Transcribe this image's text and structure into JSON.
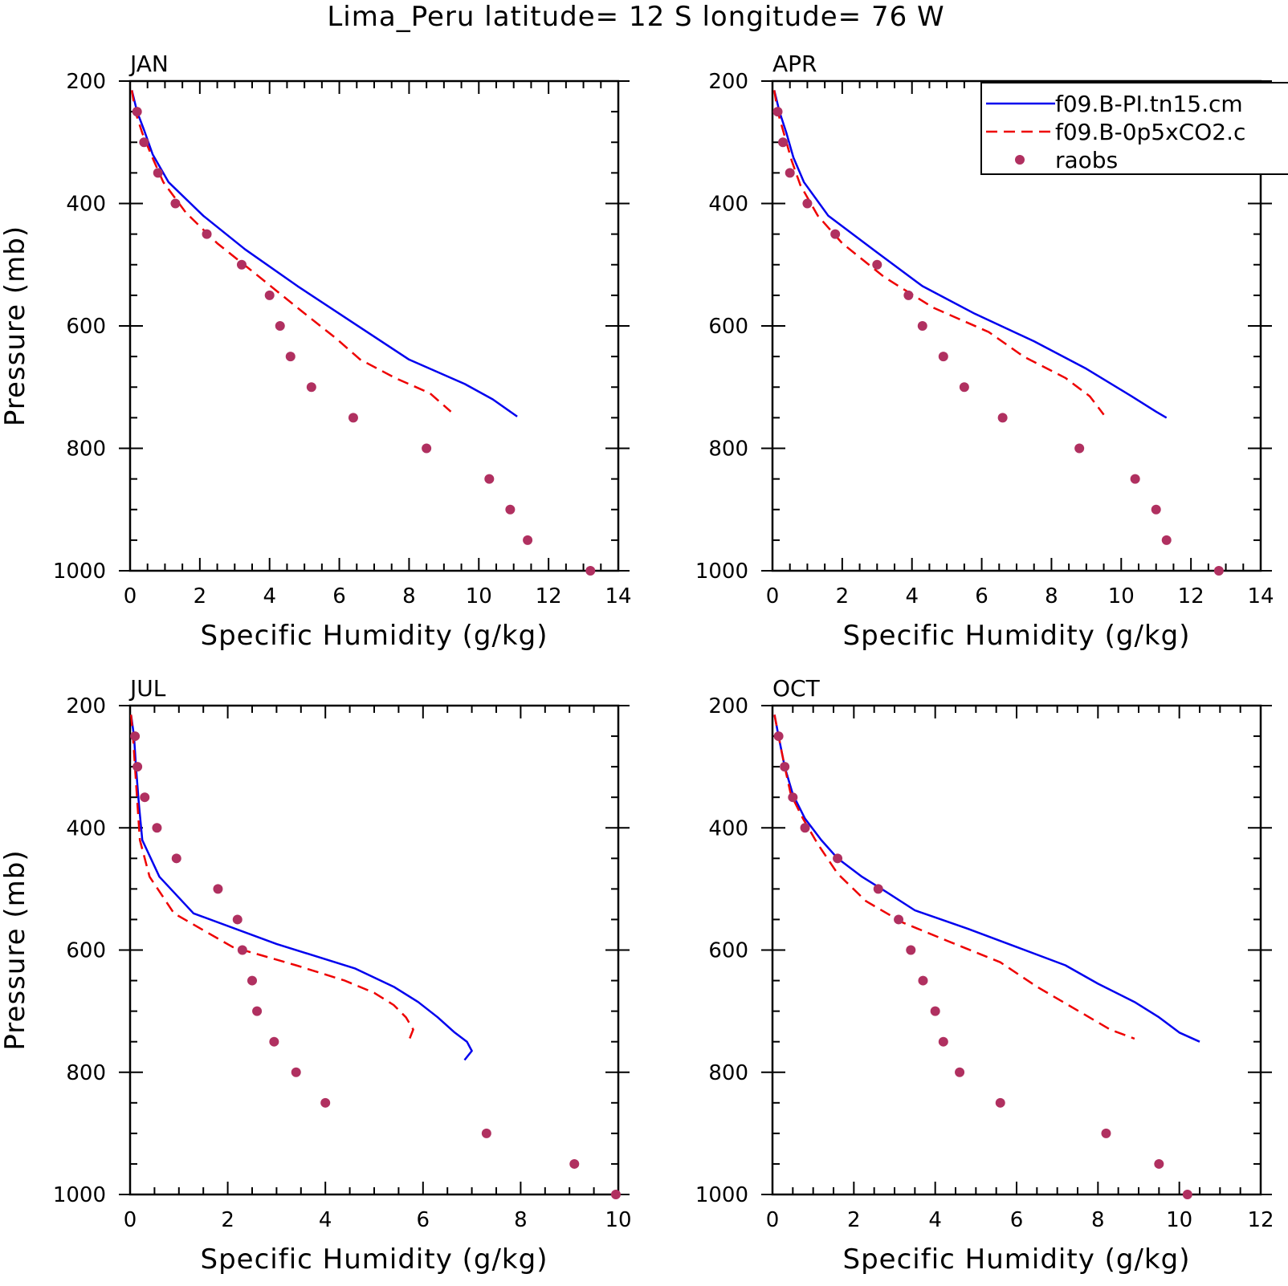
{
  "title": "Lima_Peru  latitude= 12 S longitude= 76 W",
  "colors": {
    "model_pi": "#0000ee",
    "model_0p5xco2": "#ee0000",
    "raobs": "#b03060"
  },
  "legend": {
    "placement": "top-right of APR panel, clipped at figure edge",
    "entries": [
      {
        "label": "f09.B-PI.tn15.cm",
        "style": "solid"
      },
      {
        "label": "f09.B-0p5xCO2.c",
        "style": "dashed"
      },
      {
        "label": "raobs",
        "style": "dots"
      }
    ]
  },
  "chart_data": [
    {
      "type": "line",
      "panel": "JAN",
      "xlabel": "Specific Humidity (g/kg)",
      "ylabel": "Pressure (mb)",
      "xlim": [
        0,
        14
      ],
      "ylim": [
        200,
        1000
      ],
      "y_inverted": true,
      "xticks": [
        0,
        2,
        4,
        6,
        8,
        10,
        12,
        14
      ],
      "yticks": [
        200,
        400,
        600,
        800,
        1000
      ],
      "series": [
        {
          "x": [
            0.05,
            0.2,
            0.4,
            0.65,
            1.1,
            2.1,
            3.3,
            4.8,
            6.4,
            8.0,
            9.6,
            10.4,
            11.1
          ],
          "y": [
            215,
            250,
            280,
            320,
            365,
            420,
            475,
            535,
            595,
            655,
            695,
            720,
            748
          ]
        },
        {
          "x": [
            0.05,
            0.15,
            0.35,
            0.6,
            0.95,
            1.6,
            2.5,
            3.6,
            4.9,
            5.9,
            6.6,
            7.6,
            8.6,
            9.2
          ],
          "y": [
            215,
            250,
            285,
            320,
            365,
            415,
            465,
            515,
            575,
            620,
            655,
            685,
            710,
            740
          ]
        },
        {
          "x": [
            0.2,
            0.4,
            0.8,
            1.3,
            2.2,
            3.2,
            4.0,
            4.3,
            4.6,
            5.2,
            6.4,
            8.5,
            10.3,
            10.9,
            11.4,
            13.2
          ],
          "y": [
            250,
            300,
            350,
            400,
            450,
            500,
            550,
            600,
            650,
            700,
            750,
            800,
            850,
            900,
            950,
            1000
          ]
        }
      ]
    },
    {
      "type": "line",
      "panel": "APR",
      "xlabel": "Specific Humidity (g/kg)",
      "ylabel": "",
      "xlim": [
        0,
        14
      ],
      "ylim": [
        200,
        1000
      ],
      "y_inverted": true,
      "xticks": [
        0,
        2,
        4,
        6,
        8,
        10,
        12,
        14
      ],
      "yticks": [
        200,
        400,
        600,
        800,
        1000
      ],
      "series": [
        {
          "x": [
            0.05,
            0.2,
            0.4,
            0.6,
            0.9,
            1.6,
            3.0,
            4.3,
            5.8,
            7.5,
            9.0,
            10.3,
            11.0,
            11.3
          ],
          "y": [
            215,
            250,
            285,
            325,
            365,
            420,
            480,
            535,
            580,
            625,
            670,
            715,
            740,
            750
          ]
        },
        {
          "x": [
            0.05,
            0.15,
            0.35,
            0.55,
            0.8,
            1.3,
            2.0,
            3.2,
            4.6,
            6.2,
            7.2,
            8.4,
            9.1,
            9.5
          ],
          "y": [
            215,
            250,
            290,
            330,
            370,
            420,
            465,
            520,
            570,
            610,
            650,
            685,
            715,
            745
          ]
        },
        {
          "x": [
            0.15,
            0.3,
            0.5,
            1.0,
            1.8,
            3.0,
            3.9,
            4.3,
            4.9,
            5.5,
            6.6,
            8.8,
            10.4,
            11.0,
            11.3,
            12.8
          ],
          "y": [
            250,
            300,
            350,
            400,
            450,
            500,
            550,
            600,
            650,
            700,
            750,
            800,
            850,
            900,
            950,
            1000
          ]
        }
      ]
    },
    {
      "type": "line",
      "panel": "JUL",
      "xlabel": "Specific Humidity (g/kg)",
      "ylabel": "Pressure (mb)",
      "xlim": [
        0,
        10
      ],
      "ylim": [
        200,
        1000
      ],
      "y_inverted": true,
      "xticks": [
        0,
        2,
        4,
        6,
        8,
        10
      ],
      "yticks": [
        200,
        400,
        600,
        800,
        1000
      ],
      "series": [
        {
          "x": [
            0.02,
            0.08,
            0.12,
            0.18,
            0.25,
            0.6,
            1.3,
            3.0,
            4.6,
            5.4,
            5.9,
            6.3,
            6.65,
            6.9,
            7.0,
            6.85
          ],
          "y": [
            215,
            250,
            300,
            360,
            420,
            480,
            540,
            590,
            630,
            660,
            685,
            710,
            735,
            750,
            765,
            780
          ]
        },
        {
          "x": [
            0.02,
            0.06,
            0.1,
            0.15,
            0.2,
            0.4,
            0.9,
            2.1,
            3.4,
            4.4,
            5.0,
            5.4,
            5.65,
            5.8,
            5.7
          ],
          "y": [
            215,
            250,
            300,
            360,
            420,
            480,
            540,
            595,
            625,
            650,
            670,
            690,
            710,
            730,
            750
          ]
        },
        {
          "x": [
            0.1,
            0.15,
            0.3,
            0.55,
            0.95,
            1.8,
            2.2,
            2.3,
            2.5,
            2.6,
            2.95,
            3.4,
            4.0,
            7.3,
            9.1,
            9.95
          ],
          "y": [
            250,
            300,
            350,
            400,
            450,
            500,
            550,
            600,
            650,
            700,
            750,
            800,
            850,
            900,
            950,
            1000
          ]
        }
      ]
    },
    {
      "type": "line",
      "panel": "OCT",
      "xlabel": "Specific Humidity (g/kg)",
      "ylabel": "",
      "xlim": [
        0,
        12
      ],
      "ylim": [
        200,
        1000
      ],
      "y_inverted": true,
      "xticks": [
        0,
        2,
        4,
        6,
        8,
        10,
        12
      ],
      "yticks": [
        200,
        400,
        600,
        800,
        1000
      ],
      "series": [
        {
          "x": [
            0.05,
            0.15,
            0.3,
            0.5,
            0.8,
            1.2,
            1.6,
            2.2,
            2.8,
            3.5,
            4.8,
            6.0,
            7.2,
            8.0,
            8.9,
            9.5,
            10.0,
            10.5
          ],
          "y": [
            215,
            250,
            300,
            345,
            385,
            420,
            450,
            480,
            505,
            535,
            565,
            595,
            625,
            655,
            685,
            710,
            735,
            750
          ]
        },
        {
          "x": [
            0.05,
            0.15,
            0.3,
            0.45,
            0.75,
            1.1,
            1.6,
            2.3,
            3.2,
            4.3,
            5.6,
            6.5,
            7.4,
            8.3,
            8.9
          ],
          "y": [
            215,
            250,
            300,
            345,
            385,
            425,
            475,
            520,
            555,
            585,
            620,
            660,
            695,
            730,
            745
          ]
        },
        {
          "x": [
            0.15,
            0.3,
            0.5,
            0.8,
            1.6,
            2.6,
            3.1,
            3.4,
            3.7,
            4.0,
            4.2,
            4.6,
            5.6,
            8.2,
            9.5,
            10.2
          ],
          "y": [
            250,
            300,
            350,
            400,
            450,
            500,
            550,
            600,
            650,
            700,
            750,
            800,
            850,
            900,
            950,
            1000
          ]
        }
      ]
    }
  ]
}
